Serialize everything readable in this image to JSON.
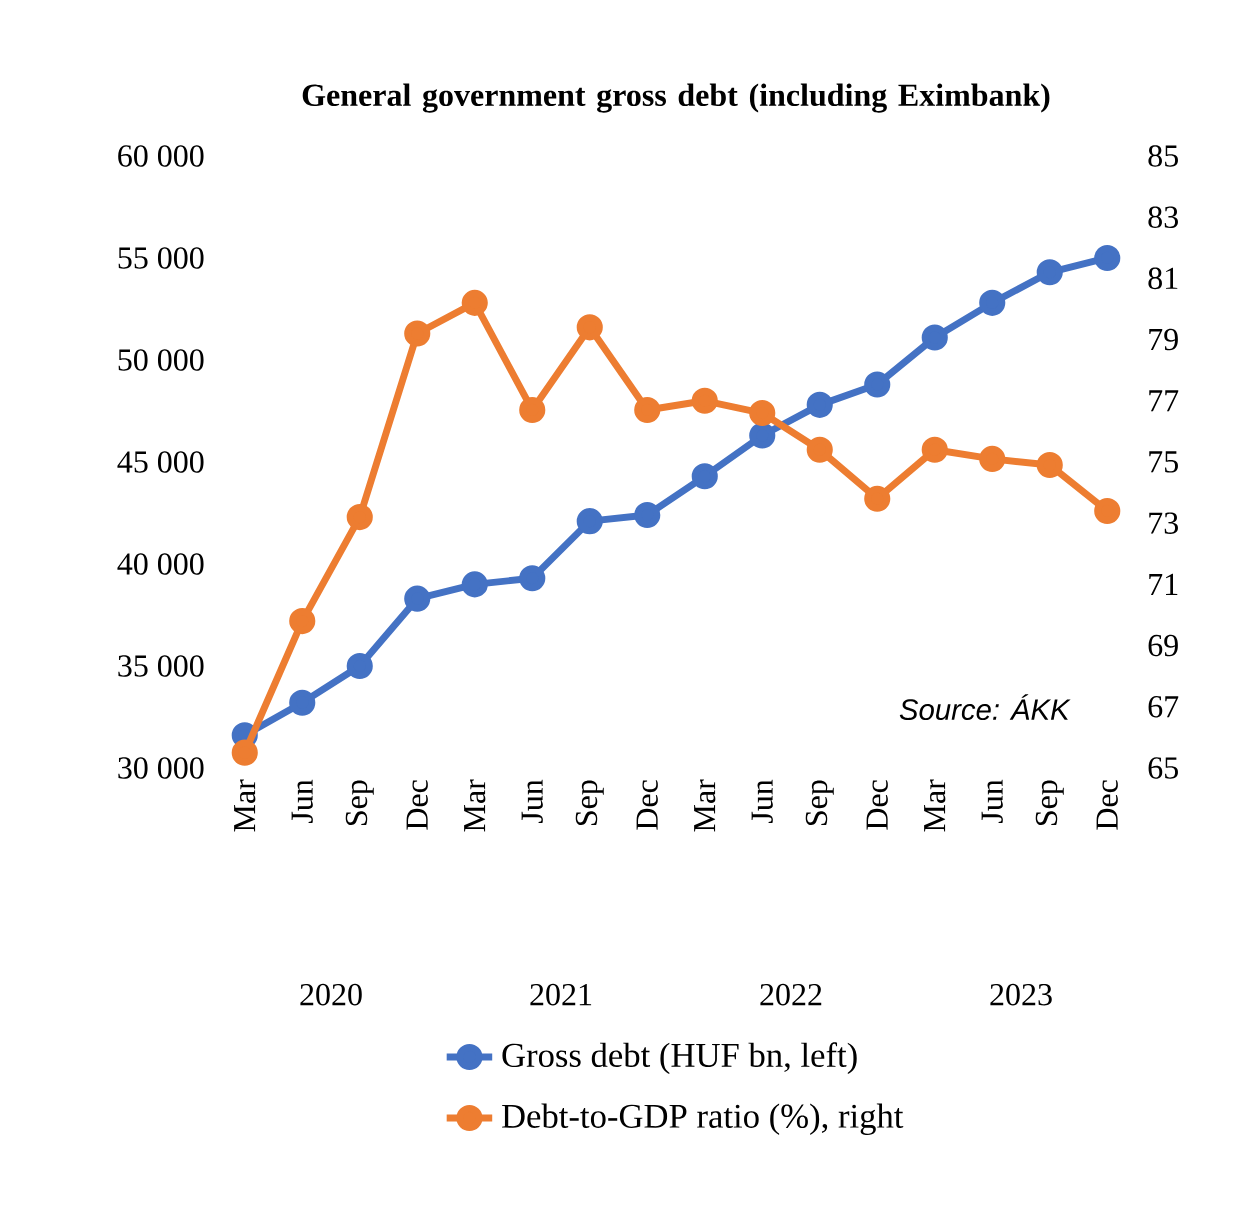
{
  "chart_data": {
    "type": "line",
    "title": "General government gross debt (including Eximbank)",
    "categories": [
      "Mar",
      "Jun",
      "Sep",
      "Dec",
      "Mar",
      "Jun",
      "Sep",
      "Dec",
      "Mar",
      "Jun",
      "Sep",
      "Dec",
      "Mar",
      "Jun",
      "Sep",
      "Dec"
    ],
    "series": [
      {
        "name": "Gross debt (HUF bn, left)",
        "color": "#4472c4",
        "values": [
          31600,
          33200,
          35000,
          38300,
          39000,
          39300,
          42100,
          42400,
          44300,
          46300,
          47800,
          48800,
          51100,
          52800,
          54300,
          55000
        ]
      },
      {
        "name": "Debt-to-GDP ratio (%), right",
        "color": "#ed7d31",
        "axis": "y2",
        "values": [
          65.5,
          69.8,
          73.2,
          79.2,
          80.2,
          76.7,
          79.4,
          76.7,
          77.0,
          76.6,
          75.4,
          73.8,
          75.4,
          75.1,
          74.9,
          73.4
        ]
      }
    ],
    "ylim": [
      30000,
      60000
    ],
    "yticks": [
      {
        "value": 30000,
        "label": "30 000"
      },
      {
        "value": 35000,
        "label": "35 000"
      },
      {
        "value": 40000,
        "label": "40 000"
      },
      {
        "value": 45000,
        "label": "45 000"
      },
      {
        "value": 50000,
        "label": "50 000"
      },
      {
        "value": 55000,
        "label": "55 000"
      },
      {
        "value": 60000,
        "label": "60 000"
      }
    ],
    "y2lim": [
      65,
      85
    ],
    "y2ticks": [
      65,
      67,
      69,
      71,
      73,
      75,
      77,
      79,
      81,
      83,
      85
    ],
    "annotations": [
      "Source: ÁKK",
      "2020",
      "2021",
      "2022",
      "2023"
    ],
    "legend": "bottom",
    "marker": "circle",
    "line_style": "solid"
  }
}
